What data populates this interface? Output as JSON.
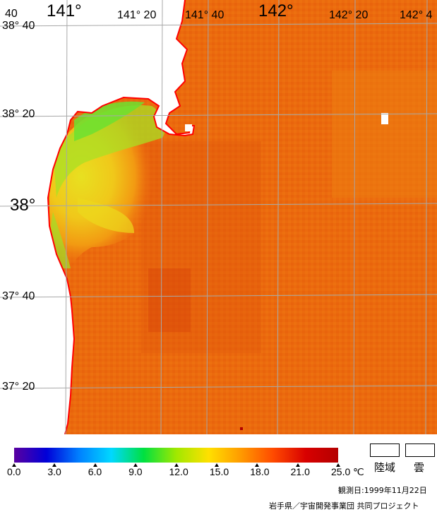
{
  "colors": {
    "land": "#ffffff",
    "coast": "#ff0000",
    "grid": "#a8a8a8",
    "sea_warm": "#ef6c0c",
    "sea_mid": "#e8cc16",
    "sea_cool": "#6ce828"
  },
  "map": {
    "lon_labels": [
      "141°",
      "141° 20",
      "141° 40",
      "142°",
      "142° 20",
      "142° 4"
    ],
    "lat_labels": [
      "38° 40",
      "38° 20",
      "38°",
      "37° 40",
      "37° 20"
    ],
    "corner_label": "40"
  },
  "colorbar": {
    "stops": [
      "#5a00a0",
      "#0000d8",
      "#0080ff",
      "#00d8ff",
      "#00e040",
      "#a0e800",
      "#ffe000",
      "#ff9a00",
      "#ff4a00",
      "#d80000",
      "#b40000"
    ],
    "ticks": [
      "0.0",
      "3.0",
      "6.0",
      "9.0",
      "12.0",
      "15.0",
      "18.0",
      "21.0",
      "25.0"
    ],
    "unit": "℃"
  },
  "legend": {
    "land_label": "陸域",
    "cloud_label": "雲"
  },
  "observation_date": "観測日:1999年11月22日",
  "credit": "岩手県／宇宙開発事業団  共同プロジェクト"
}
